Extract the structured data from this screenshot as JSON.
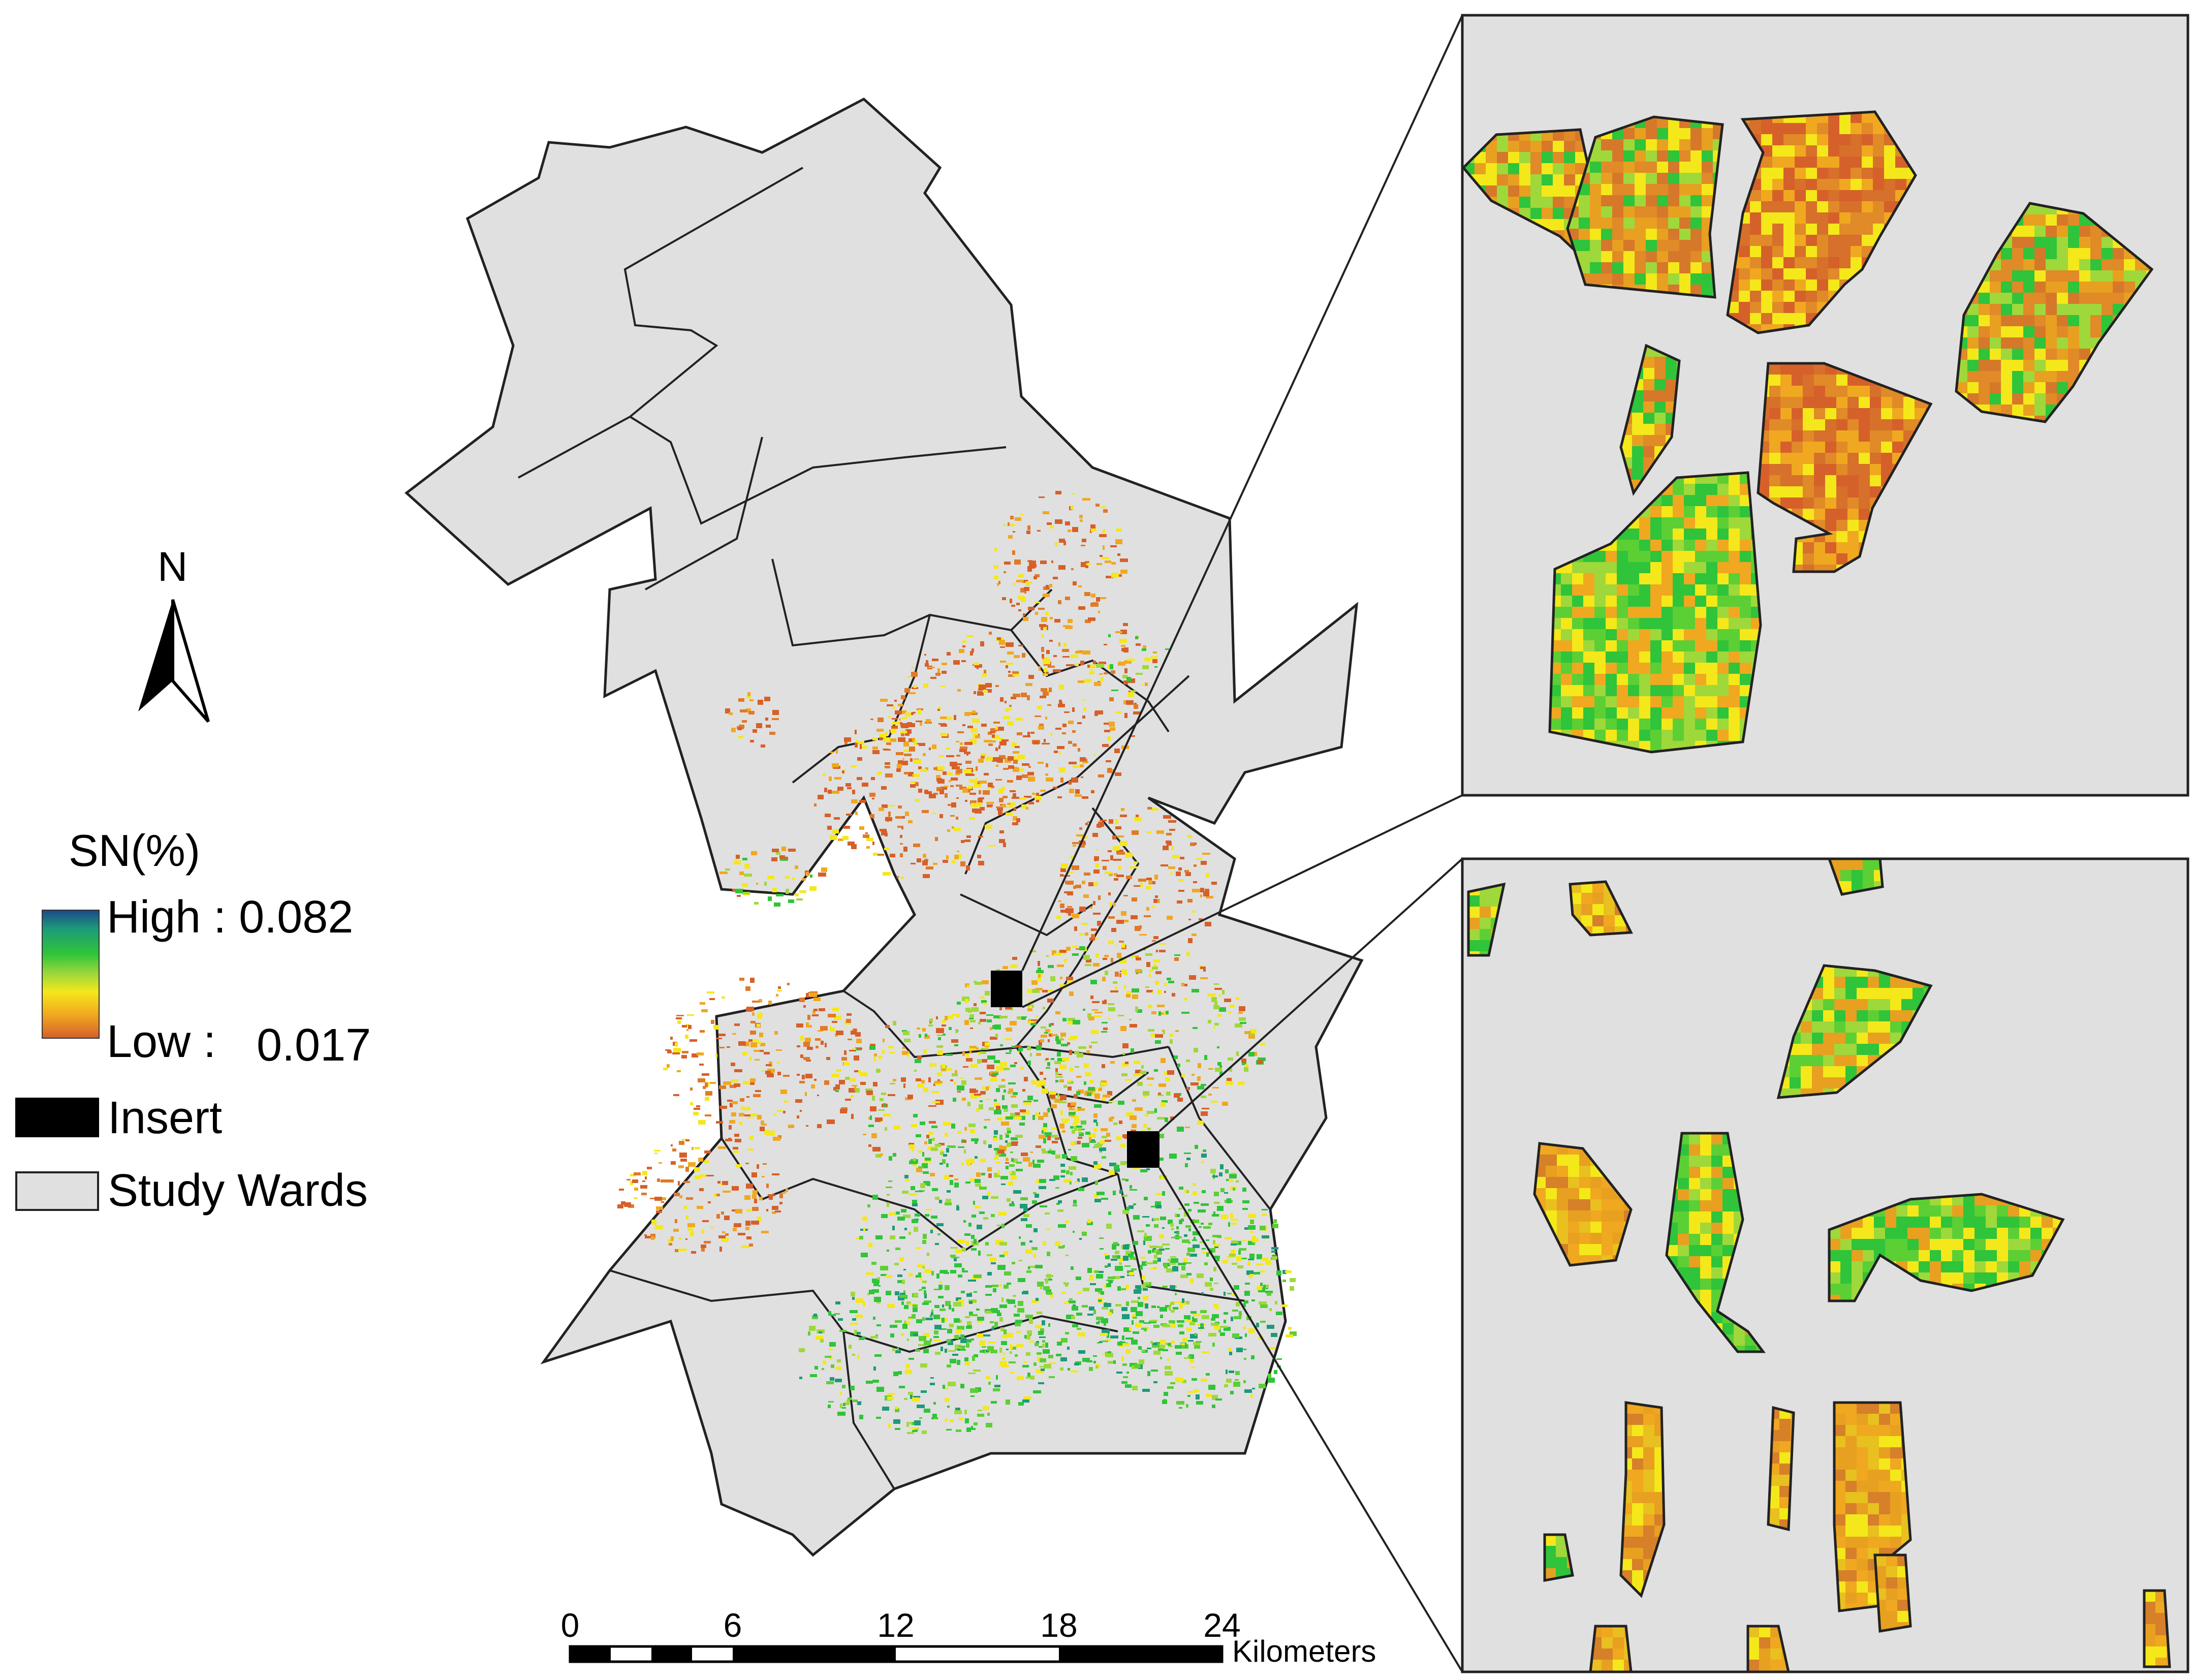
{
  "north_arrow": {
    "label": "N",
    "icon": "north-arrow-icon"
  },
  "legend": {
    "title": "SN(%)",
    "high_label": "High : 0.082",
    "low_label": "Low :",
    "low_value": "0.017",
    "insert_label": "Insert",
    "wards_label": "Study Wards",
    "colors": {
      "high": "#1a4a8a",
      "mid_high": "#2fc43a",
      "mid": "#f4e81a",
      "low": "#d6602a",
      "insert": "#000000",
      "wards": "#e0e0e0"
    }
  },
  "scale_bar": {
    "ticks": [
      "0",
      "6",
      "12",
      "18",
      "24"
    ],
    "unit": "Kilometers"
  },
  "insets": [
    {
      "name": "upper-inset",
      "background": "#e0e0e0"
    },
    {
      "name": "lower-inset",
      "background": "#e0e0e0"
    }
  ]
}
